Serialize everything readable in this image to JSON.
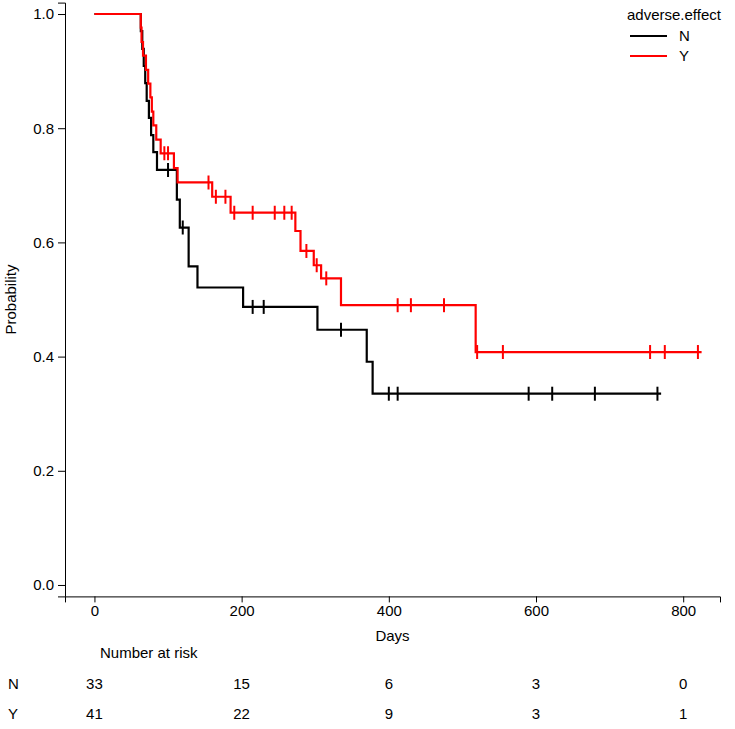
{
  "chart_data": {
    "type": "survival",
    "x_label": "Days",
    "y_label": "Probability",
    "xlim": [
      -40,
      850
    ],
    "ylim": [
      -0.02,
      1.02
    ],
    "xticks": [
      0,
      200,
      400,
      600,
      800
    ],
    "yticks": [
      {
        "value": 0,
        "label": "0.0"
      },
      {
        "value": 0.2,
        "label": "0.2"
      },
      {
        "value": 0.4,
        "label": "0.4"
      },
      {
        "value": 0.6,
        "label": "0.6"
      },
      {
        "value": 0.8,
        "label": "0.8"
      },
      {
        "value": 1,
        "label": "1.0"
      }
    ],
    "legend": "top-right",
    "legend_title": "adverse.effect",
    "risk_table_title": "Number at risk",
    "series": [
      {
        "name": "N",
        "color": "#000000",
        "line_style": "step",
        "x": [
          0,
          63,
          65,
          67,
          69,
          71,
          74,
          77,
          80,
          85,
          112,
          116,
          128,
          140,
          202,
          303,
          370,
          378,
          770
        ],
        "values": [
          1,
          0.97,
          0.939,
          0.909,
          0.879,
          0.848,
          0.818,
          0.788,
          0.758,
          0.727,
          0.675,
          0.626,
          0.558,
          0.521,
          0.487,
          0.447,
          0.391,
          0.335,
          0.335
        ],
        "censor_x": [
          100,
          120,
          215,
          230,
          335,
          400,
          412,
          590,
          622,
          680,
          765
        ],
        "censor_values": [
          0.727,
          0.626,
          0.487,
          0.487,
          0.447,
          0.335,
          0.335,
          0.335,
          0.335,
          0.335,
          0.335
        ],
        "at_risk": [
          33,
          15,
          6,
          3,
          0
        ]
      },
      {
        "name": "Y",
        "color": "#ff0000",
        "line_style": "step",
        "x": [
          0,
          63,
          64,
          66,
          70,
          73,
          76,
          78,
          80,
          84,
          90,
          108,
          113,
          160,
          185,
          273,
          280,
          298,
          308,
          335,
          518,
          825
        ],
        "values": [
          1,
          0.976,
          0.951,
          0.927,
          0.902,
          0.878,
          0.854,
          0.829,
          0.805,
          0.78,
          0.756,
          0.73,
          0.705,
          0.68,
          0.652,
          0.62,
          0.585,
          0.56,
          0.537,
          0.49,
          0.408,
          0.408
        ],
        "censor_x": [
          95,
          100,
          155,
          165,
          178,
          190,
          215,
          245,
          258,
          268,
          288,
          302,
          315,
          412,
          430,
          475,
          520,
          555,
          755,
          775,
          820
        ],
        "censor_values": [
          0.756,
          0.756,
          0.705,
          0.68,
          0.68,
          0.652,
          0.652,
          0.652,
          0.652,
          0.652,
          0.585,
          0.56,
          0.537,
          0.49,
          0.49,
          0.49,
          0.408,
          0.408,
          0.408,
          0.408,
          0.408
        ],
        "at_risk": [
          41,
          22,
          9,
          3,
          1
        ]
      }
    ]
  }
}
